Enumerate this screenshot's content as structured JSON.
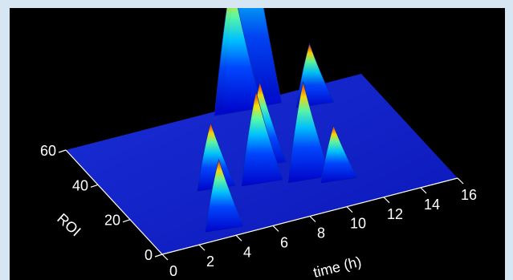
{
  "chart_data": {
    "type": "surface",
    "title": "",
    "xlabel": "time (h)",
    "ylabel": "ROI",
    "xlim": [
      0,
      16
    ],
    "ylim": [
      0,
      60
    ],
    "x_ticks": [
      0,
      2,
      4,
      6,
      8,
      10,
      12,
      14,
      16
    ],
    "y_ticks": [
      0,
      20,
      40,
      60
    ],
    "colormap": "jet",
    "background": "#000000",
    "frame_color": "#d6e7f3",
    "grid": false,
    "peaks": [
      {
        "time": 9.5,
        "roi": 58,
        "value": 1.0
      },
      {
        "time": 8.8,
        "roi": 58,
        "value": 0.62
      },
      {
        "time": 7.9,
        "roi": 30,
        "value": 0.38
      },
      {
        "time": 9.2,
        "roi": 18,
        "value": 0.45
      },
      {
        "time": 12.5,
        "roi": 52,
        "value": 0.28
      },
      {
        "time": 4.8,
        "roi": 25,
        "value": 0.3
      },
      {
        "time": 7.0,
        "roi": 22,
        "value": 0.42
      },
      {
        "time": 3.5,
        "roi": 5,
        "value": 0.32
      },
      {
        "time": 10.5,
        "roi": 14,
        "value": 0.25
      }
    ]
  }
}
